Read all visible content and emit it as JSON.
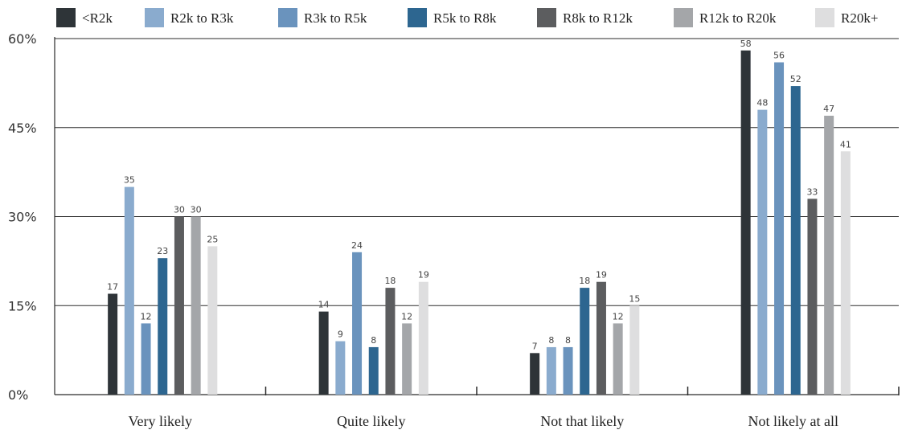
{
  "chart_data": {
    "type": "bar",
    "categories": [
      "Very likely",
      "Quite likely",
      "Not that likely",
      "Not likely at all"
    ],
    "series": [
      {
        "name": "<R2k",
        "color": "#2e3438",
        "values": [
          17,
          14,
          7,
          58
        ]
      },
      {
        "name": "R2k to R3k",
        "color": "#8aabce",
        "values": [
          35,
          9,
          8,
          48
        ]
      },
      {
        "name": "R3k to R5k",
        "color": "#6a93bd",
        "values": [
          12,
          24,
          8,
          56
        ]
      },
      {
        "name": "R5k to R8k",
        "color": "#2d6690",
        "values": [
          23,
          8,
          18,
          52
        ]
      },
      {
        "name": "R8k to R12k",
        "color": "#5c5d5f",
        "values": [
          30,
          18,
          19,
          33
        ]
      },
      {
        "name": "R12k to R20k",
        "color": "#a4a6a9",
        "values": [
          30,
          12,
          12,
          47
        ]
      },
      {
        "name": "R20k+",
        "color": "#dededf",
        "values": [
          25,
          19,
          15,
          41
        ]
      }
    ],
    "y_ticks": [
      "0%",
      "15%",
      "30%",
      "45%",
      "60%"
    ],
    "ylim": [
      0,
      60
    ],
    "grid": true,
    "legend_position": "top",
    "title": "",
    "xlabel": "",
    "ylabel": ""
  }
}
